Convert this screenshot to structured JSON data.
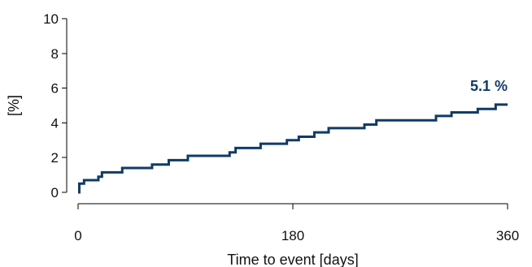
{
  "chart_data": {
    "type": "line",
    "title": "",
    "xlabel": "Time to event [days]",
    "ylabel": "[%]",
    "xlim": [
      0,
      360
    ],
    "ylim": [
      0,
      10
    ],
    "x_ticks": [
      0,
      180,
      360
    ],
    "y_ticks": [
      0,
      2,
      4,
      6,
      8,
      10
    ],
    "grid": false,
    "legend": "none",
    "colors": {
      "series": "#0f3b68",
      "axis": "#000000",
      "text": "#111111"
    },
    "series": [
      {
        "step": true,
        "x": [
          0,
          1,
          1,
          5,
          5,
          17,
          17,
          20,
          20,
          37,
          37,
          62,
          62,
          76,
          76,
          92,
          92,
          127,
          127,
          132,
          132,
          153,
          153,
          175,
          175,
          185,
          185,
          198,
          198,
          210,
          210,
          240,
          240,
          250,
          250,
          300,
          300,
          313,
          313,
          335,
          335,
          350,
          350,
          360
        ],
        "y": [
          0,
          0,
          0.5,
          0.5,
          0.7,
          0.7,
          0.9,
          0.9,
          1.15,
          1.15,
          1.4,
          1.4,
          1.6,
          1.6,
          1.85,
          1.85,
          2.1,
          2.1,
          2.3,
          2.3,
          2.55,
          2.55,
          2.8,
          2.8,
          3.0,
          3.0,
          3.2,
          3.2,
          3.45,
          3.45,
          3.7,
          3.7,
          3.9,
          3.9,
          4.15,
          4.15,
          4.4,
          4.4,
          4.6,
          4.6,
          4.8,
          4.8,
          5.05,
          5.05
        ]
      }
    ],
    "annotations": [
      {
        "text": "5.1 %",
        "x": 360,
        "y": 5.05,
        "color": "#0f3b68"
      }
    ]
  }
}
